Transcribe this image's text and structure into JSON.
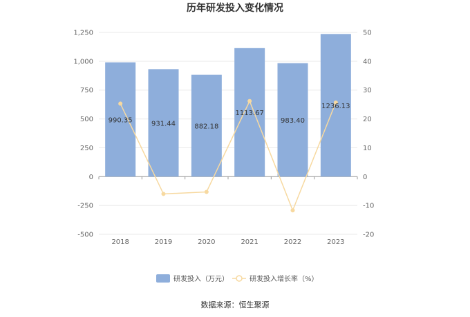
{
  "chart_data": {
    "type": "bar",
    "title": "历年研发投入变化情况",
    "categories": [
      "2018",
      "2019",
      "2020",
      "2021",
      "2022",
      "2023"
    ],
    "series": [
      {
        "name": "研发投入（万元）",
        "type": "bar",
        "axis": "left",
        "values": [
          990.35,
          931.44,
          882.18,
          1113.67,
          983.4,
          1236.13
        ],
        "labels": [
          "990.35",
          "931.44",
          "882.18",
          "1113.67",
          "983.40",
          "1236.13"
        ],
        "color": "#8eaedb"
      },
      {
        "name": "研发投入增长率（%）",
        "type": "line",
        "axis": "right",
        "values": [
          25.3,
          -6.0,
          -5.3,
          26.2,
          -11.7,
          25.7
        ],
        "color": "#f7d9a0"
      }
    ],
    "y_left": {
      "min": -500,
      "max": 1250,
      "ticks": [
        "-500",
        "-250",
        "0",
        "250",
        "500",
        "750",
        "1,000",
        "1,250"
      ]
    },
    "y_right": {
      "min": -20,
      "max": 50,
      "ticks": [
        "-20",
        "-10",
        "0",
        "10",
        "20",
        "30",
        "40",
        "50"
      ]
    },
    "grid": true,
    "legend_position": "bottom"
  },
  "source_text": "数据来源：恒生聚源"
}
